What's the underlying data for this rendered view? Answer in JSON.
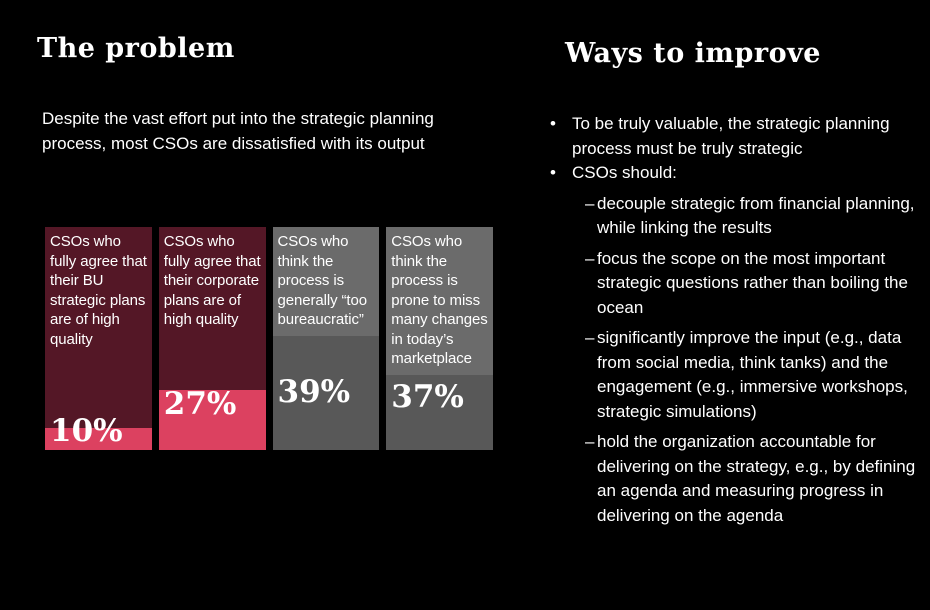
{
  "left_panel": {
    "title": "The problem",
    "intro": "Despite the vast effort put into the strategic planning process, most CSOs are dissatisfied with its output",
    "chart_data": {
      "type": "bar",
      "orientation": "vertical",
      "unit": "%",
      "ylim": [
        0,
        100
      ],
      "grid": false,
      "categories": [
        "CSOs who fully agree that their BU strategic plans are of high quality",
        "CSOs who fully agree that their corporate plans are of high quality",
        "CSOs who think the process is generally “too bureaucratic”",
        "CSOs who think the process is prone to miss many changes in today’s marketplace"
      ],
      "values": [
        10,
        27,
        39,
        37
      ],
      "bars": [
        {
          "label": "CSOs who fully agree that their BU strategic plans are of high quality",
          "value": 10,
          "value_label": "10%",
          "bg_color": "#541726",
          "fill_color": "#dc4160"
        },
        {
          "label": "CSOs who fully agree that their corporate plans are of high quality",
          "value": 27,
          "value_label": "27%",
          "bg_color": "#541726",
          "fill_color": "#dc4160"
        },
        {
          "label": "CSOs who think the process is generally “too bureaucratic”",
          "value": 39,
          "value_label": "39%",
          "bg_color": "#585858",
          "fill_color": "#585858",
          "label_bg_color": "#6b6b6b"
        },
        {
          "label": "CSOs who think the process is prone to miss many changes in today’s marketplace",
          "value": 37,
          "value_label": "37%",
          "bg_color": "#585858",
          "fill_color": "#585858",
          "label_bg_color": "#6b6b6b"
        }
      ]
    }
  },
  "right_panel": {
    "title": "Ways to improve",
    "bullets": [
      {
        "level": 1,
        "marker": "•",
        "text": "To be truly valuable, the strategic planning process must be truly strategic"
      },
      {
        "level": 1,
        "marker": "•",
        "text": "CSOs should:"
      },
      {
        "level": 2,
        "marker": "–",
        "text": "decouple strategic from financial planning, while linking the results"
      },
      {
        "level": 2,
        "marker": "–",
        "text": "focus the scope on the most important strategic questions rather than boiling the ocean"
      },
      {
        "level": 2,
        "marker": "–",
        "text": "significantly improve the input (e.g., data from social media, think tanks) and the engagement (e.g., immersive workshops, strategic simulations)"
      },
      {
        "level": 2,
        "marker": "–",
        "text": "hold the organization accountable for delivering on the strategy, e.g., by defining an agenda and measuring progress in delivering on the agenda"
      }
    ]
  },
  "colors": {
    "background": "#000000",
    "text": "#ffffff",
    "bar_maroon": "#541726",
    "bar_pink": "#dc4160",
    "bar_dark_gray": "#585858",
    "bar_light_gray": "#6b6b6b"
  }
}
